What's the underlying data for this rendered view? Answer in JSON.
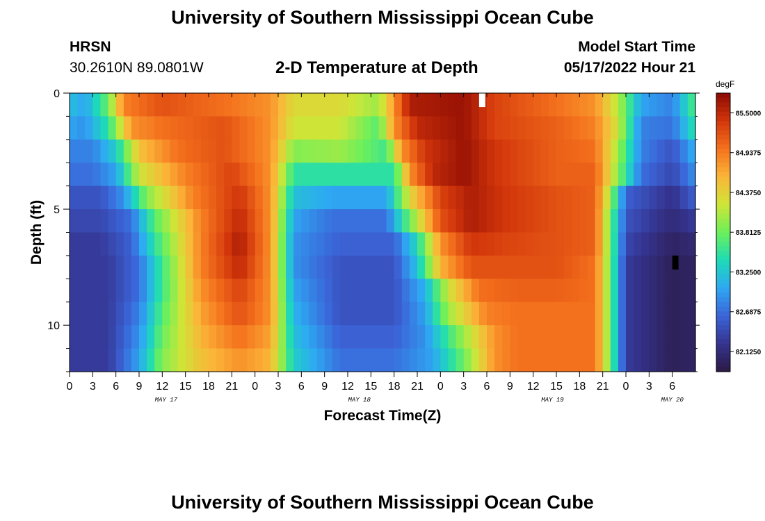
{
  "page": {
    "title": "University of Southern Mississippi Ocean Cube",
    "footer_title": "University of Southern Mississippi Ocean Cube",
    "site_code": "HRSN",
    "coordinates": "30.2610N  89.0801W",
    "subtitle": "2-D Temperature at Depth",
    "model_start_label": "Model Start Time",
    "model_start_value": "05/17/2022 Hour 21"
  },
  "chart_data": {
    "type": "heatmap",
    "title": "2-D Temperature at Depth",
    "xlabel": "Forecast Time(Z)",
    "ylabel": "Depth (ft)",
    "x_hours_range": [
      0,
      81
    ],
    "ylim": [
      0,
      12
    ],
    "y_ticks": [
      "0",
      "5",
      "10"
    ],
    "x_tick_labels": [
      "0",
      "3",
      "6",
      "9",
      "12",
      "15",
      "18",
      "21",
      "0",
      "3",
      "6",
      "9",
      "12",
      "15",
      "18",
      "21",
      "0",
      "3",
      "6",
      "9",
      "12",
      "15",
      "18",
      "21",
      "0",
      "3",
      "6"
    ],
    "date_labels": [
      {
        "label": "MAY 17",
        "hour": 12.5
      },
      {
        "label": "MAY 18",
        "hour": 37.5
      },
      {
        "label": "MAY 19",
        "hour": 62.5
      },
      {
        "label": "MAY 20",
        "hour": 78
      }
    ],
    "colorbar": {
      "unit": "degF",
      "min": 81.84,
      "max": 85.78,
      "tick_labels": [
        "85.5000",
        "84.9375",
        "84.3750",
        "83.8125",
        "83.2500",
        "82.6875",
        "82.1250"
      ],
      "tick_values": [
        85.5,
        84.9375,
        84.375,
        83.8125,
        83.25,
        82.6875,
        82.125
      ],
      "colors": [
        "#2b1a44",
        "#35338f",
        "#3b64d8",
        "#2ea8f3",
        "#1ddbb7",
        "#6df05a",
        "#cfe538",
        "#fbb538",
        "#f4711d",
        "#d2360b",
        "#8c0a03"
      ]
    },
    "depth_levels_ft": [
      0.5,
      1.5,
      2.5,
      3.5,
      4.5,
      5.5,
      6.5,
      7.5,
      8.5,
      9.5,
      10.5,
      11.5
    ],
    "hours_per_column": 1,
    "temperature_profile_note": "Each row lists [hour, degF] anchors; values between anchors are interpolated hourly.",
    "temperature_rows": [
      [
        [
          0,
          83.2
        ],
        [
          2,
          83.0
        ],
        [
          5,
          83.8
        ],
        [
          7,
          84.9
        ],
        [
          12,
          85.2
        ],
        [
          20,
          85.0
        ],
        [
          26,
          84.8
        ],
        [
          29,
          84.3
        ],
        [
          35,
          84.3
        ],
        [
          40,
          84.0
        ],
        [
          42,
          84.8
        ],
        [
          44,
          85.6
        ],
        [
          51,
          85.7
        ],
        [
          55,
          85.3
        ],
        [
          63,
          85.0
        ],
        [
          68,
          84.8
        ],
        [
          71,
          84.1
        ],
        [
          74,
          83.0
        ],
        [
          78,
          82.8
        ],
        [
          81,
          83.7
        ]
      ],
      [
        [
          0,
          83.0
        ],
        [
          2,
          82.9
        ],
        [
          5,
          83.5
        ],
        [
          8,
          84.8
        ],
        [
          12,
          85.0
        ],
        [
          20,
          85.2
        ],
        [
          26,
          84.8
        ],
        [
          29,
          84.2
        ],
        [
          35,
          84.2
        ],
        [
          40,
          83.7
        ],
        [
          42,
          84.8
        ],
        [
          45,
          85.5
        ],
        [
          51,
          85.7
        ],
        [
          55,
          85.3
        ],
        [
          63,
          85.1
        ],
        [
          68,
          84.9
        ],
        [
          71,
          84.2
        ],
        [
          74,
          82.8
        ],
        [
          78,
          82.7
        ],
        [
          81,
          83.5
        ]
      ],
      [
        [
          0,
          82.8
        ],
        [
          3,
          82.8
        ],
        [
          6,
          83.3
        ],
        [
          9,
          84.5
        ],
        [
          14,
          85.0
        ],
        [
          20,
          85.2
        ],
        [
          26,
          84.8
        ],
        [
          29,
          83.9
        ],
        [
          35,
          84.0
        ],
        [
          41,
          83.6
        ],
        [
          43,
          84.8
        ],
        [
          46,
          85.4
        ],
        [
          51,
          85.7
        ],
        [
          55,
          85.4
        ],
        [
          63,
          85.1
        ],
        [
          68,
          85.0
        ],
        [
          71,
          84.0
        ],
        [
          74,
          82.8
        ],
        [
          78,
          82.5
        ],
        [
          81,
          83.1
        ]
      ],
      [
        [
          0,
          82.7
        ],
        [
          3,
          82.7
        ],
        [
          6,
          83.0
        ],
        [
          9,
          84.2
        ],
        [
          15,
          84.9
        ],
        [
          21,
          85.3
        ],
        [
          26,
          84.8
        ],
        [
          29,
          83.5
        ],
        [
          36,
          83.5
        ],
        [
          42,
          83.5
        ],
        [
          44,
          84.8
        ],
        [
          47,
          85.5
        ],
        [
          51,
          85.7
        ],
        [
          55,
          85.4
        ],
        [
          63,
          85.1
        ],
        [
          68,
          85.1
        ],
        [
          71,
          83.9
        ],
        [
          74,
          82.7
        ],
        [
          78,
          82.4
        ],
        [
          81,
          82.9
        ]
      ],
      [
        [
          0,
          82.5
        ],
        [
          4,
          82.5
        ],
        [
          7,
          82.9
        ],
        [
          10,
          83.9
        ],
        [
          16,
          84.9
        ],
        [
          22,
          85.4
        ],
        [
          26,
          84.8
        ],
        [
          29,
          83.2
        ],
        [
          34,
          83.0
        ],
        [
          41,
          83.0
        ],
        [
          44,
          84.3
        ],
        [
          48,
          85.3
        ],
        [
          52,
          85.6
        ],
        [
          56,
          85.4
        ],
        [
          63,
          85.2
        ],
        [
          68,
          85.1
        ],
        [
          70,
          84.0
        ],
        [
          72,
          82.6
        ],
        [
          78,
          82.2
        ],
        [
          81,
          82.6
        ]
      ],
      [
        [
          0,
          82.4
        ],
        [
          4,
          82.4
        ],
        [
          8,
          82.7
        ],
        [
          11,
          83.7
        ],
        [
          17,
          84.9
        ],
        [
          22,
          85.5
        ],
        [
          26,
          84.8
        ],
        [
          29,
          83.0
        ],
        [
          34,
          82.7
        ],
        [
          41,
          82.7
        ],
        [
          44,
          83.8
        ],
        [
          48,
          85.2
        ],
        [
          52,
          85.6
        ],
        [
          56,
          85.4
        ],
        [
          63,
          85.2
        ],
        [
          68,
          85.1
        ],
        [
          70,
          83.8
        ],
        [
          72,
          82.5
        ],
        [
          78,
          82.1
        ],
        [
          81,
          82.3
        ]
      ],
      [
        [
          0,
          82.3
        ],
        [
          4,
          82.3
        ],
        [
          8,
          82.6
        ],
        [
          11,
          83.5
        ],
        [
          17,
          84.9
        ],
        [
          22,
          85.6
        ],
        [
          26,
          84.8
        ],
        [
          29,
          82.9
        ],
        [
          35,
          82.6
        ],
        [
          42,
          82.6
        ],
        [
          45,
          83.4
        ],
        [
          48,
          84.8
        ],
        [
          52,
          85.4
        ],
        [
          56,
          85.3
        ],
        [
          63,
          85.2
        ],
        [
          68,
          85.1
        ],
        [
          70,
          83.8
        ],
        [
          72,
          82.4
        ],
        [
          78,
          82.0
        ],
        [
          81,
          82.1
        ]
      ],
      [
        [
          0,
          82.3
        ],
        [
          5,
          82.3
        ],
        [
          9,
          82.7
        ],
        [
          12,
          83.6
        ],
        [
          17,
          84.9
        ],
        [
          22,
          85.5
        ],
        [
          26,
          84.8
        ],
        [
          29,
          82.9
        ],
        [
          35,
          82.5
        ],
        [
          42,
          82.5
        ],
        [
          45,
          83.2
        ],
        [
          48,
          84.6
        ],
        [
          52,
          85.2
        ],
        [
          56,
          85.2
        ],
        [
          63,
          85.2
        ],
        [
          68,
          85.0
        ],
        [
          70,
          83.8
        ],
        [
          72,
          82.3
        ],
        [
          78,
          81.95
        ],
        [
          81,
          82.0
        ]
      ],
      [
        [
          0,
          82.3
        ],
        [
          5,
          82.3
        ],
        [
          9,
          82.7
        ],
        [
          12,
          83.6
        ],
        [
          17,
          84.8
        ],
        [
          22,
          85.3
        ],
        [
          26,
          84.8
        ],
        [
          29,
          83.0
        ],
        [
          35,
          82.5
        ],
        [
          42,
          82.5
        ],
        [
          46,
          83.1
        ],
        [
          49,
          84.2
        ],
        [
          53,
          85.0
        ],
        [
          58,
          85.1
        ],
        [
          63,
          85.1
        ],
        [
          68,
          85.0
        ],
        [
          70,
          83.8
        ],
        [
          72,
          82.3
        ],
        [
          78,
          81.95
        ],
        [
          81,
          82.0
        ]
      ],
      [
        [
          0,
          82.3
        ],
        [
          5,
          82.3
        ],
        [
          9,
          82.8
        ],
        [
          12,
          83.7
        ],
        [
          17,
          84.7
        ],
        [
          22,
          85.2
        ],
        [
          26,
          84.8
        ],
        [
          29,
          83.1
        ],
        [
          35,
          82.5
        ],
        [
          42,
          82.5
        ],
        [
          46,
          83.0
        ],
        [
          49,
          84.0
        ],
        [
          54,
          84.9
        ],
        [
          58,
          85.0
        ],
        [
          63,
          85.0
        ],
        [
          68,
          85.0
        ],
        [
          70,
          83.8
        ],
        [
          72,
          82.3
        ],
        [
          78,
          81.95
        ],
        [
          81,
          82.0
        ]
      ],
      [
        [
          0,
          82.3
        ],
        [
          5,
          82.3
        ],
        [
          9,
          82.9
        ],
        [
          12,
          83.8
        ],
        [
          17,
          84.6
        ],
        [
          22,
          85.0
        ],
        [
          26,
          84.7
        ],
        [
          29,
          83.2
        ],
        [
          35,
          82.6
        ],
        [
          42,
          82.6
        ],
        [
          46,
          82.9
        ],
        [
          50,
          83.8
        ],
        [
          55,
          84.8
        ],
        [
          58,
          85.0
        ],
        [
          63,
          85.0
        ],
        [
          68,
          85.0
        ],
        [
          70,
          83.8
        ],
        [
          72,
          82.3
        ],
        [
          78,
          81.95
        ],
        [
          81,
          82.0
        ]
      ],
      [
        [
          0,
          82.3
        ],
        [
          5,
          82.3
        ],
        [
          9,
          83.0
        ],
        [
          12,
          83.9
        ],
        [
          17,
          84.5
        ],
        [
          22,
          84.8
        ],
        [
          26,
          84.6
        ],
        [
          29,
          83.3
        ],
        [
          35,
          82.7
        ],
        [
          42,
          82.7
        ],
        [
          47,
          83.0
        ],
        [
          51,
          83.8
        ],
        [
          55,
          84.8
        ],
        [
          58,
          85.0
        ],
        [
          63,
          85.0
        ],
        [
          68,
          85.0
        ],
        [
          70,
          83.8
        ],
        [
          72,
          82.3
        ],
        [
          78,
          81.95
        ],
        [
          81,
          82.0
        ]
      ]
    ],
    "missing_cells": [
      {
        "hour": 53,
        "depth_row": 0,
        "color": "#ffffff"
      },
      {
        "hour": 78,
        "depth_row": 7,
        "color": "#000000"
      }
    ]
  }
}
